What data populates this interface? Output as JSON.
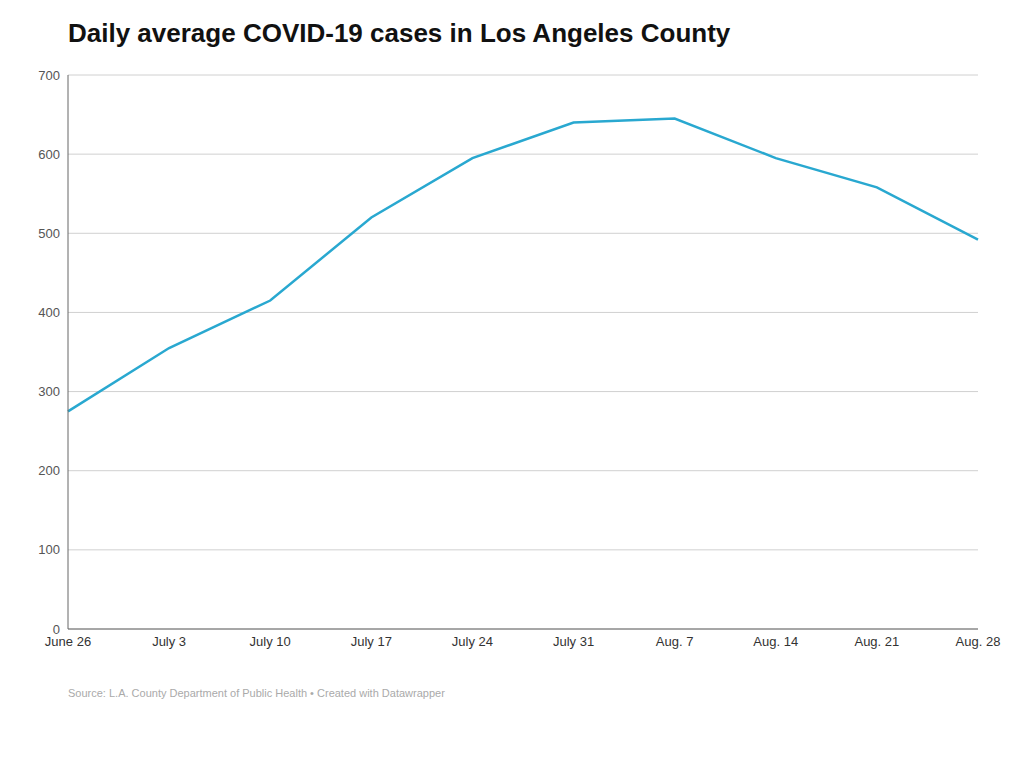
{
  "chart_data": {
    "type": "line",
    "title": "Daily average COVID-19 cases in Los Angeles County",
    "categories": [
      "June 26",
      "July 3",
      "July 10",
      "July 17",
      "July 24",
      "July 31",
      "Aug. 7",
      "Aug. 14",
      "Aug. 21",
      "Aug. 28"
    ],
    "values": [
      275,
      355,
      415,
      520,
      595,
      640,
      645,
      595,
      558,
      492
    ],
    "color": "#29a8d0",
    "ylim": [
      0,
      700
    ],
    "yticks": [
      0,
      100,
      200,
      300,
      400,
      500,
      600,
      700
    ],
    "grid": true,
    "annotations": [
      "Source: L.A. County Department of Public Health • Created with Datawrapper"
    ]
  }
}
